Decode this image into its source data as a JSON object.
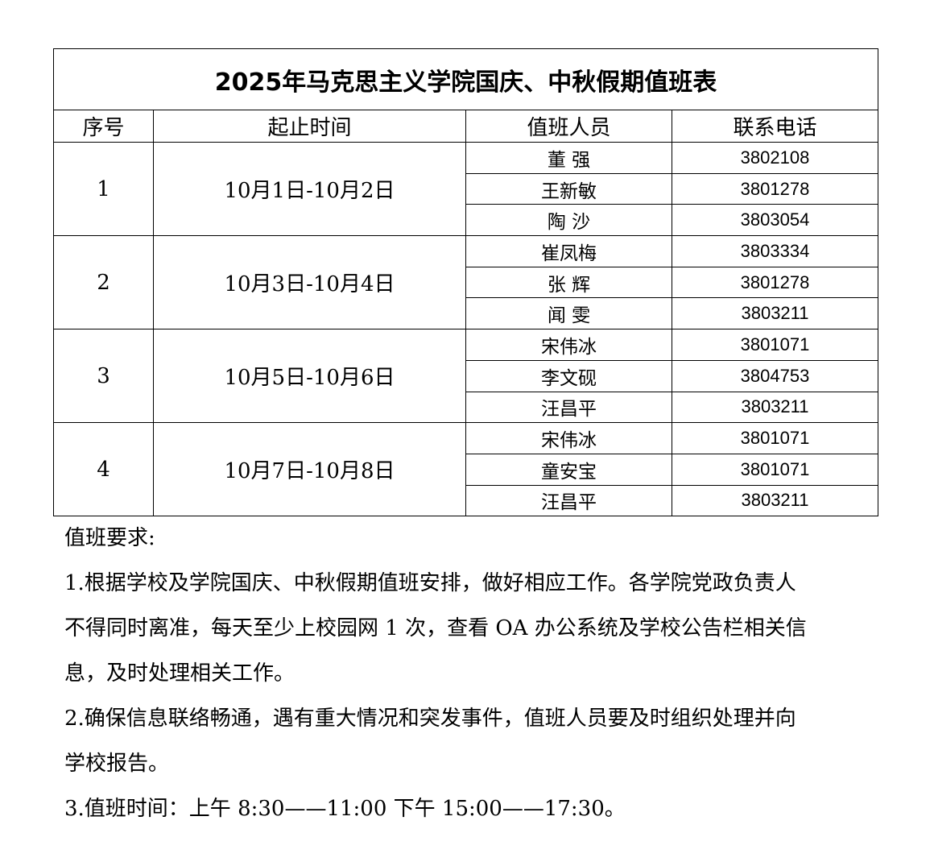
{
  "title": "2025年马克思主义学院国庆、中秋假期值班表",
  "headers": [
    "序号",
    "起止时间",
    "值班人员",
    "联系电话"
  ],
  "groups": [
    {
      "no": "1",
      "period": "10月1日-10月2日",
      "staff": [
        {
          "name": "董 强",
          "phone": "3802108"
        },
        {
          "name": "王新敏",
          "phone": "3801278"
        },
        {
          "name": "陶 沙",
          "phone": "3803054"
        }
      ]
    },
    {
      "no": "2",
      "period": "10月3日-10月4日",
      "staff": [
        {
          "name": "崔凤梅",
          "phone": "3803334"
        },
        {
          "name": "张 辉",
          "phone": "3801278"
        },
        {
          "name": "闻 雯",
          "phone": "3803211"
        }
      ]
    },
    {
      "no": "3",
      "period": "10月5日-10月6日",
      "staff": [
        {
          "name": "宋伟冰",
          "phone": "3801071"
        },
        {
          "name": "李文砚",
          "phone": "3804753"
        },
        {
          "name": "汪昌平",
          "phone": "3803211"
        }
      ]
    },
    {
      "no": "4",
      "period": "10月7日-10月8日",
      "staff": [
        {
          "name": "宋伟冰",
          "phone": "3801071"
        },
        {
          "name": "童安宝",
          "phone": "3801071"
        },
        {
          "name": "汪昌平",
          "phone": "3803211"
        }
      ]
    }
  ],
  "notes": {
    "heading": "值班要求:",
    "lines": [
      "1.根据学校及学院国庆、中秋假期值班安排，做好相应工作。各学院党政负责人",
      "不得同时离准，每天至少上校园网 1 次，查看 OA 办公系统及学校公告栏相关信",
      "息，及时处理相关工作。",
      "2.确保信息联络畅通，遇有重大情况和突发事件，值班人员要及时组织处理并向",
      "学校报告。",
      "3.值班时间：上午 8:30——11:00   下午 15:00——17:30。"
    ]
  }
}
